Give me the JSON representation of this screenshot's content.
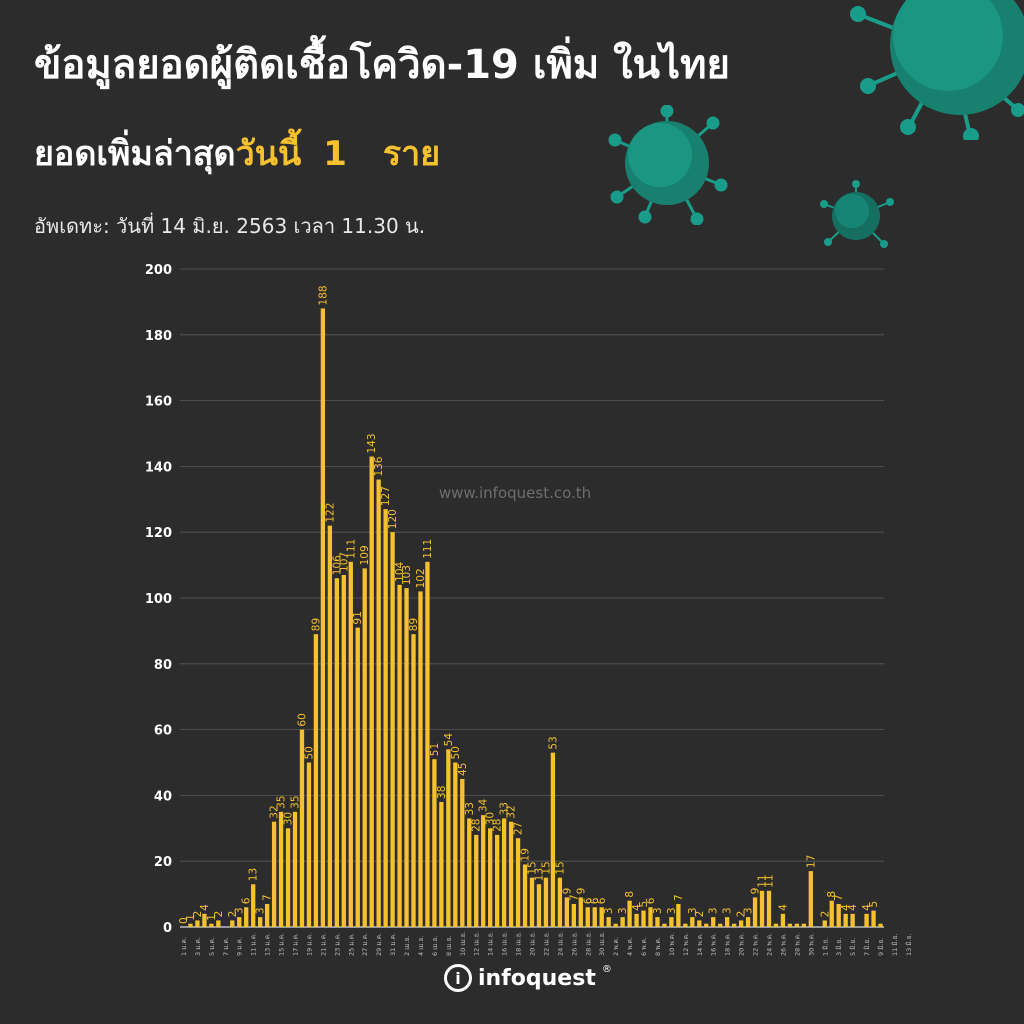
{
  "header": {
    "title": "ข้อมูลยอดผู้ติดเชื้อโควิด-19 เพิ่ม ในไทย",
    "subtitle_label": "ยอดเพิ่มล่าสุด",
    "subtitle_today": "วันนี้",
    "subtitle_number": "1",
    "subtitle_unit": "ราย",
    "update": "อัพเดทะ: วันที่  14 มิ.ย. 2563 เวลา 11.30 น."
  },
  "watermark": "www.infoquest.co.th",
  "logo": {
    "glyph": "i",
    "text": "infoquest",
    "mark": "®"
  },
  "colors": {
    "background": "#2c2c2c",
    "bar": "#f5c12e",
    "accent": "#f5c12e",
    "grid": "#5a5a5a",
    "virus": "#1a9c8a"
  },
  "chart_data": {
    "type": "bar",
    "ylim": [
      0,
      200
    ],
    "yticks": [
      0,
      20,
      40,
      60,
      80,
      100,
      120,
      140,
      160,
      180,
      200
    ],
    "grid": true,
    "series": [
      {
        "values": [
          0,
          1,
          2,
          4,
          1,
          2,
          0,
          2,
          3,
          6,
          13,
          3,
          7,
          32,
          35,
          30,
          35,
          60,
          50,
          89,
          188,
          122,
          106,
          107,
          111,
          91,
          109,
          143,
          136,
          127,
          120,
          104,
          103,
          89,
          102,
          111,
          51,
          38,
          54,
          50,
          45,
          33,
          28,
          34,
          30,
          28,
          33,
          32,
          27,
          19,
          15,
          13,
          15,
          53,
          15,
          9,
          7,
          9,
          6,
          6,
          6,
          3,
          1,
          3,
          8,
          4,
          5,
          6,
          3,
          1,
          3,
          7,
          1,
          3,
          2,
          1,
          3,
          1,
          3,
          1,
          2,
          3,
          9,
          11,
          11,
          1,
          4,
          1,
          1,
          1,
          17,
          0,
          2,
          8,
          7,
          4,
          4,
          0,
          4,
          5,
          1
        ],
        "labels": [
          "0",
          "1",
          "2",
          "4",
          "1",
          "2",
          "",
          "2",
          "3",
          "6",
          "13",
          "3",
          "7",
          "32",
          "35",
          "30",
          "35",
          "60",
          "50",
          "89",
          "188",
          "122",
          "106",
          "107",
          "111",
          "91",
          "109",
          "143",
          "136",
          "127",
          "120",
          "104",
          "103",
          "89",
          "102",
          "111",
          "51",
          "38",
          "54",
          "50",
          "45",
          "33",
          "28",
          "34",
          "30",
          "28",
          "33",
          "32",
          "27",
          "19",
          "15",
          "13",
          "15",
          "53",
          "15",
          "9",
          "7",
          "9",
          "6",
          "6",
          "6",
          "3",
          "",
          "3",
          "8",
          "4",
          "5",
          "6",
          "3",
          "",
          "3",
          "7",
          "",
          "3",
          "2",
          "",
          "3",
          "",
          "3",
          "",
          "2",
          "3",
          "9",
          "11",
          "11",
          "",
          "4",
          "",
          "",
          "",
          "17",
          "",
          "2",
          "8",
          "7",
          "4",
          "4",
          "",
          "4",
          "5",
          ""
        ]
      }
    ],
    "x_tick_labels": [
      "1 ม.ค.",
      "3 ม.ค.",
      "5 ม.ค.",
      "7 ม.ค.",
      "9 ม.ค.",
      "11 ม.ค.",
      "13 ม.ค.",
      "15 ม.ค.",
      "17 ม.ค.",
      "19 ม.ค.",
      "21 ม.ค.",
      "23 ม.ค.",
      "25 ม.ค.",
      "27 ม.ค.",
      "29 ม.ค.",
      "31 ม.ค.",
      "2 เม.ย.",
      "4 เม.ย.",
      "6 เม.ย.",
      "8 เม.ย.",
      "10 เม.ย.",
      "12 เม.ย.",
      "14 เม.ย.",
      "16 เม.ย.",
      "18 เม.ย.",
      "20 เม.ย.",
      "22 เม.ย.",
      "24 เม.ย.",
      "26 เม.ย.",
      "28 เม.ย.",
      "30 เม.ย.",
      "2 พ.ค.",
      "4 พ.ค.",
      "6 พ.ค.",
      "8 พ.ค.",
      "10 พ.ค.",
      "12 พ.ค.",
      "14 พ.ค.",
      "16 พ.ค.",
      "18 พ.ค.",
      "20 พ.ค.",
      "22 พ.ค.",
      "24 พ.ค.",
      "26 พ.ค.",
      "28 พ.ค.",
      "30 พ.ค.",
      "1 มิ.ย.",
      "3 มิ.ย.",
      "5 มิ.ย.",
      "7 มิ.ย.",
      "9 มิ.ย.",
      "11 มิ.ย.",
      "13 มิ.ย."
    ]
  }
}
